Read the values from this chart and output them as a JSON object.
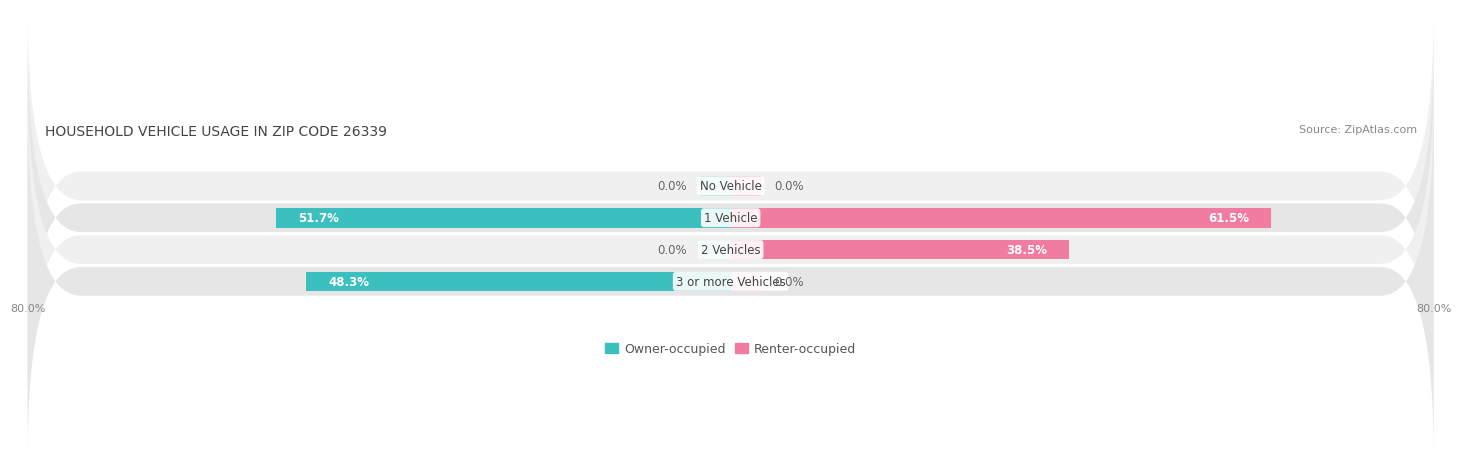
{
  "title": "HOUSEHOLD VEHICLE USAGE IN ZIP CODE 26339",
  "source": "Source: ZipAtlas.com",
  "categories": [
    "No Vehicle",
    "1 Vehicle",
    "2 Vehicles",
    "3 or more Vehicles"
  ],
  "owner_values": [
    0.0,
    51.7,
    0.0,
    48.3
  ],
  "renter_values": [
    0.0,
    61.5,
    38.5,
    0.0
  ],
  "owner_color": "#3bbfbf",
  "renter_color": "#f07ca0",
  "owner_color_light": "#a8dede",
  "renter_color_light": "#f5b8ce",
  "row_bg_color_odd": "#f0f0f0",
  "row_bg_color_even": "#e6e6e6",
  "x_min": -80.0,
  "x_max": 80.0,
  "x_tick_labels": [
    "80.0%",
    "80.0%"
  ],
  "title_fontsize": 10,
  "source_fontsize": 8,
  "label_fontsize": 8.5,
  "value_fontsize": 8.5,
  "tick_fontsize": 8,
  "legend_fontsize": 9
}
